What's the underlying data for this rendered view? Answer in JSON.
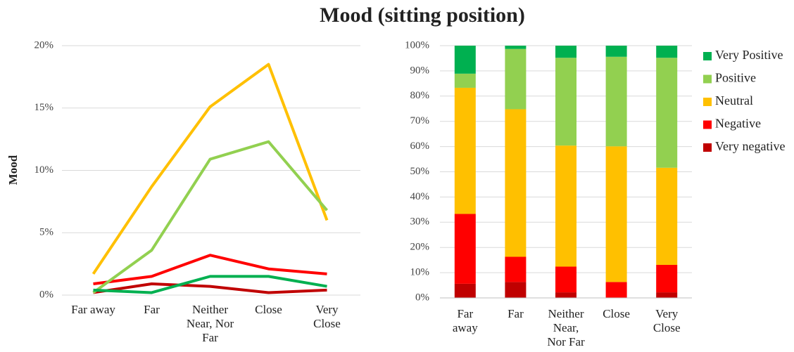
{
  "title": "Mood (sitting position)",
  "chart_data": [
    {
      "type": "line",
      "y_label": "Mood",
      "categories": [
        "Far away",
        "Far",
        "Neither Near, Nor Far",
        "Close",
        "Very Close"
      ],
      "ylim": [
        0,
        20
      ],
      "yticks": [
        {
          "value": 0,
          "label": "0%"
        },
        {
          "value": 5,
          "label": "5%"
        },
        {
          "value": 10,
          "label": "10%"
        },
        {
          "value": 15,
          "label": "15%"
        },
        {
          "value": 20,
          "label": "20%"
        }
      ],
      "grid": true,
      "series": [
        {
          "color": "#c00000",
          "values": [
            0.2,
            0.9,
            0.7,
            0.2,
            0.4
          ]
        },
        {
          "color": "#ff0000",
          "values": [
            0.9,
            1.5,
            3.2,
            2.1,
            1.7
          ]
        },
        {
          "color": "#ffc000",
          "values": [
            1.7,
            8.7,
            15.1,
            18.5,
            6.0
          ]
        },
        {
          "color": "#92d050",
          "values": [
            0.2,
            3.6,
            10.9,
            12.3,
            6.8
          ]
        },
        {
          "color": "#00b050",
          "values": [
            0.4,
            0.2,
            1.5,
            1.5,
            0.7
          ]
        }
      ]
    },
    {
      "type": "stacked_bar",
      "categories": [
        "Far away",
        "Far",
        "Neither Near, Nor Far",
        "Close",
        "Very Close"
      ],
      "ylim": [
        0,
        100
      ],
      "yticks": [
        {
          "value": 0,
          "label": "0%"
        },
        {
          "value": 10,
          "label": "10%"
        },
        {
          "value": 20,
          "label": "20%"
        },
        {
          "value": 30,
          "label": "30%"
        },
        {
          "value": 40,
          "label": "40%"
        },
        {
          "value": 50,
          "label": "50%"
        },
        {
          "value": 60,
          "label": "60%"
        },
        {
          "value": 70,
          "label": "70%"
        },
        {
          "value": 80,
          "label": "80%"
        },
        {
          "value": 90,
          "label": "90%"
        },
        {
          "value": 100,
          "label": "100%"
        }
      ],
      "grid": true,
      "legend": "right",
      "series": [
        {
          "name": "Very negative",
          "color": "#c00000",
          "values": [
            5.6,
            6.3,
            2.2,
            0,
            2.2
          ]
        },
        {
          "name": "Negative",
          "color": "#ff0000",
          "values": [
            27.7,
            10.0,
            10.2,
            6.3,
            10.9
          ]
        },
        {
          "name": "Neutral",
          "color": "#ffc000",
          "values": [
            50.0,
            58.5,
            48.0,
            53.8,
            38.5
          ]
        },
        {
          "name": "Positive",
          "color": "#92d050",
          "values": [
            5.6,
            23.9,
            34.8,
            35.5,
            43.6
          ]
        },
        {
          "name": "Very Positive",
          "color": "#00b050",
          "values": [
            11.1,
            1.3,
            4.8,
            4.4,
            4.8
          ]
        }
      ]
    }
  ]
}
